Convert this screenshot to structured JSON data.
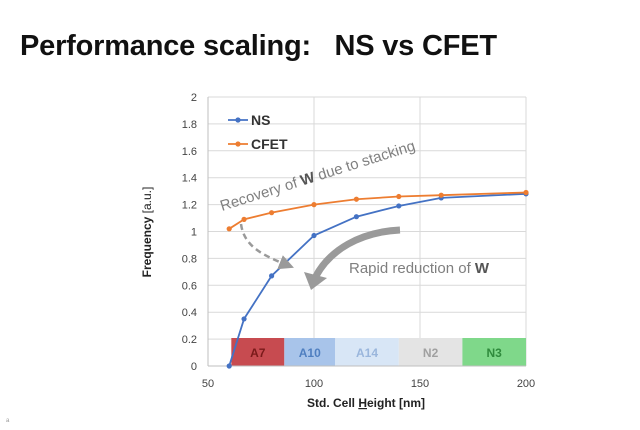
{
  "slide": {
    "title": "Performance scaling:   NS vs CFET",
    "footer_mark": "a"
  },
  "chart_data": {
    "type": "line",
    "xlabel_parts": [
      "Std. Cell ",
      "H",
      "eight [nm]"
    ],
    "ylabel_parts": [
      "Frequency",
      " [a.u.]"
    ],
    "xlim": [
      50,
      200
    ],
    "ylim": [
      0,
      2
    ],
    "xticks": [
      50,
      100,
      150,
      200
    ],
    "yticks": [
      0,
      0.2,
      0.4,
      0.6,
      0.8,
      1,
      1.2,
      1.4,
      1.6,
      1.8,
      2
    ],
    "ytick_labels": [
      "0",
      "0.2",
      "0.4",
      "0.6",
      "0.8",
      "1",
      "1.2",
      "1.4",
      "1.6",
      "1.8",
      "2"
    ],
    "grid": true,
    "legend_position": "top-left",
    "series": [
      {
        "name": "NS",
        "color": "#4472c4",
        "x": [
          60,
          67,
          80,
          100,
          120,
          140,
          160,
          200
        ],
        "y": [
          0,
          0.35,
          0.67,
          0.97,
          1.11,
          1.19,
          1.25,
          1.28
        ]
      },
      {
        "name": "CFET",
        "color": "#ed7d31",
        "x": [
          60,
          67,
          80,
          100,
          120,
          140,
          160,
          200
        ],
        "y": [
          1.02,
          1.09,
          1.14,
          1.2,
          1.24,
          1.26,
          1.27,
          1.29
        ]
      }
    ],
    "nodes": [
      {
        "label": "A7",
        "x_start": 61,
        "x_end": 86,
        "fill": "#c74b50",
        "text_color": "#7a1a1a"
      },
      {
        "label": "A10",
        "x_start": 86,
        "x_end": 110,
        "fill": "#a8c4ea",
        "text_color": "#4f7fc0"
      },
      {
        "label": "A14",
        "x_start": 110,
        "x_end": 140,
        "fill": "#d8e6f6",
        "text_color": "#9ab6dc"
      },
      {
        "label": "N2",
        "x_start": 140,
        "x_end": 170,
        "fill": "#e4e4e4",
        "text_color": "#a0a0a0"
      },
      {
        "label": "N3",
        "x_start": 170,
        "x_end": 200,
        "fill": "#7fd88a",
        "text_color": "#2f8a3c"
      }
    ],
    "annotations": {
      "recovery_parts": [
        "Recovery of ",
        "W",
        " due to stacking"
      ],
      "rapid_parts": [
        "Rapid reduction of ",
        "W"
      ],
      "annotation_color": "#9a9a9a"
    }
  }
}
